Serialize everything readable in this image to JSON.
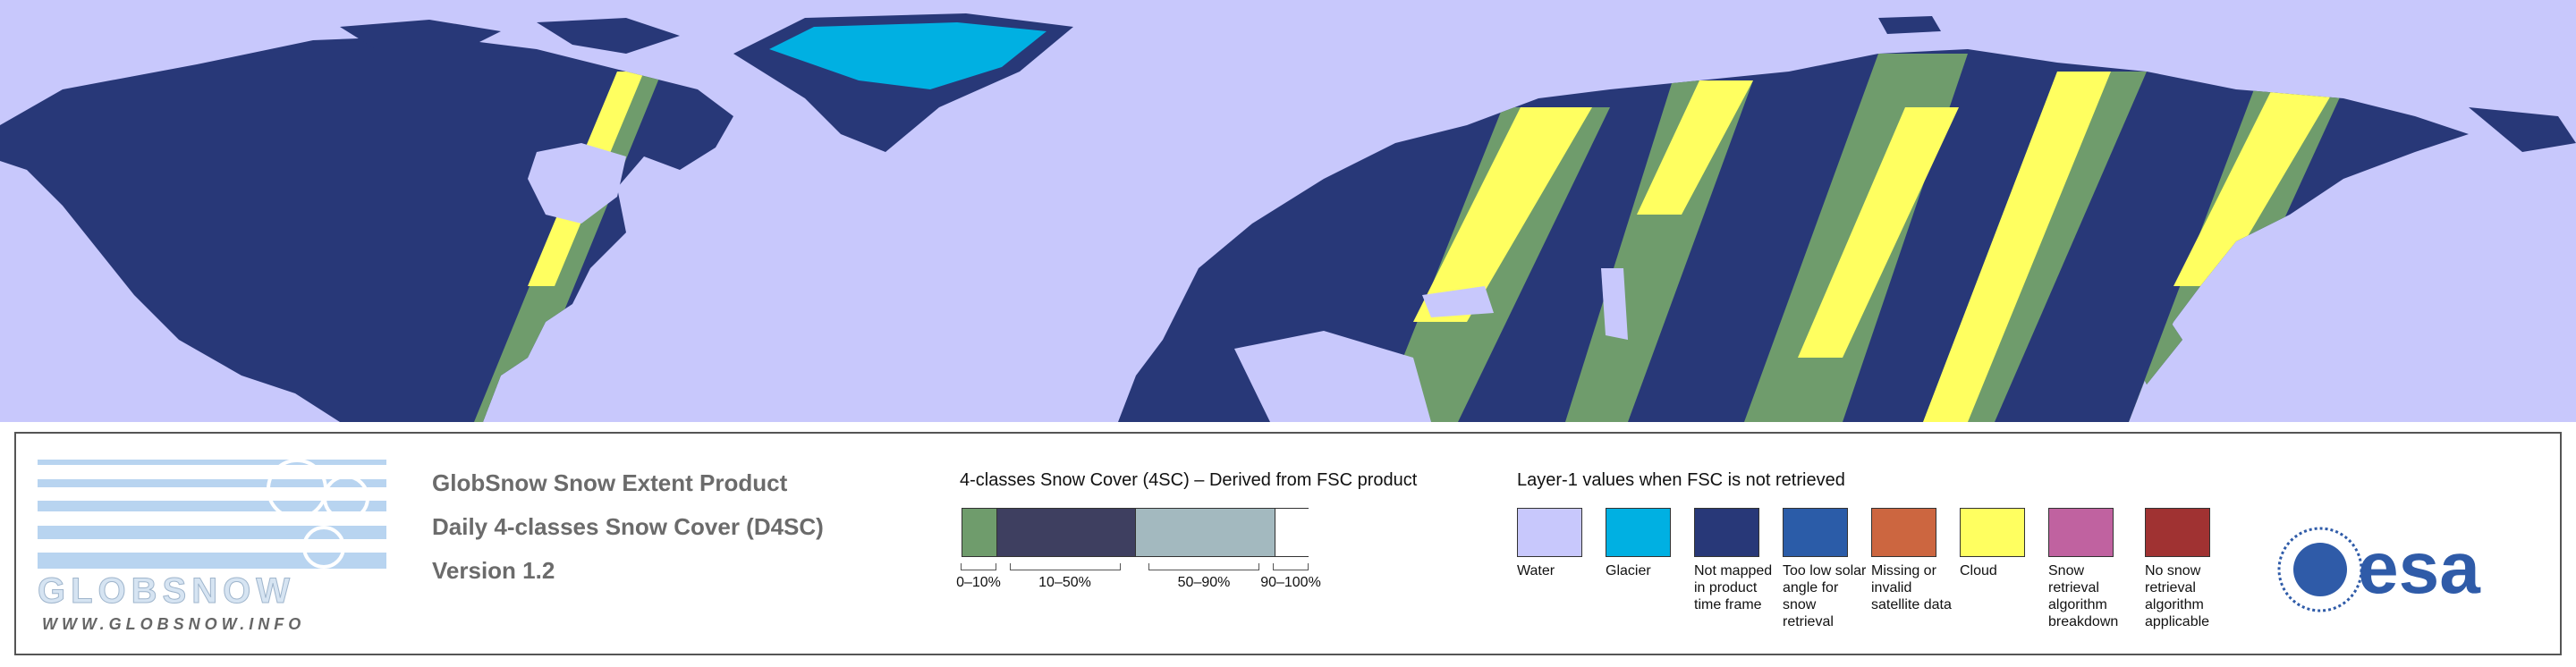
{
  "logo": {
    "name": "GLOBSNOW",
    "url": "WWW.GLOBSNOW.INFO"
  },
  "product": {
    "lines": [
      "GlobSnow Snow Extent Product",
      "Daily 4-classes Snow Cover (D4SC)",
      "Version 1.2"
    ]
  },
  "snow_cover_legend": {
    "title": "4-classes Snow Cover (4SC) – Derived from FSC product",
    "classes": [
      {
        "label": "0–10%",
        "color": "#6f9c6c"
      },
      {
        "label": "10–50%",
        "color": "#3e3f60"
      },
      {
        "label": "50–90%",
        "color": "#a3b9bf"
      },
      {
        "label": "90–100%",
        "color": "#ffffff"
      }
    ]
  },
  "layer1_legend": {
    "title": "Layer-1 values when FSC is not retrieved",
    "items": [
      {
        "label": "Water",
        "color": "#c8c8fc"
      },
      {
        "label": "Glacier",
        "color": "#00b0e2"
      },
      {
        "label": "Not mapped in product time frame",
        "color": "#283878"
      },
      {
        "label": "Too low solar angle for snow retrieval",
        "color": "#2b5ca8"
      },
      {
        "label": "Missing or invalid satellite data",
        "color": "#cc6640"
      },
      {
        "label": "Cloud",
        "color": "#ffff60"
      },
      {
        "label": "Snow retrieval algorithm breakdown",
        "color": "#c062a0"
      },
      {
        "label": "No snow retrieval algorithm applicable",
        "color": "#a03232"
      }
    ]
  },
  "agency": "esa"
}
